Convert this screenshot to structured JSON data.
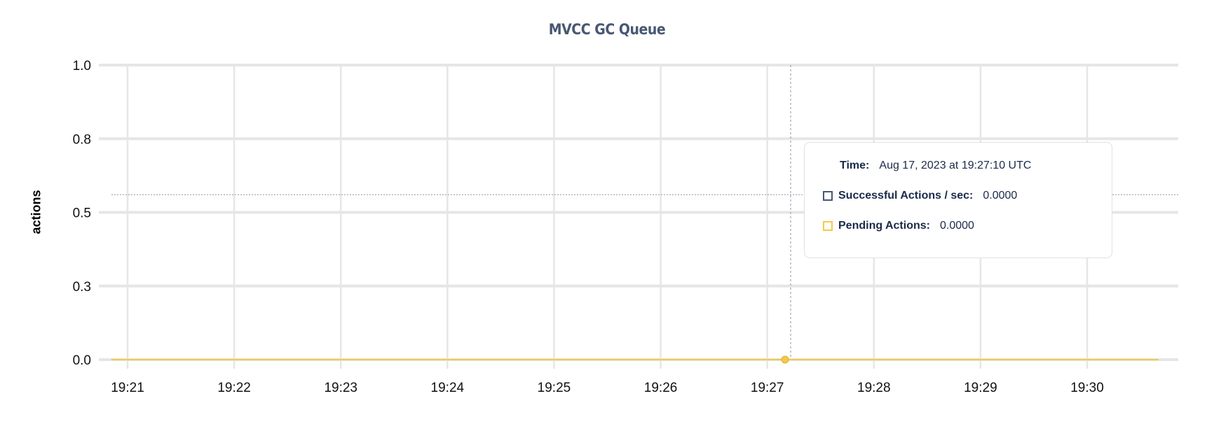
{
  "chart_data": {
    "type": "line",
    "title": "MVCC GC Queue",
    "ylabel": "actions",
    "xlabel": "",
    "ylim": [
      0,
      1
    ],
    "y_ticks": [
      {
        "value": 0,
        "label": "0.0"
      },
      {
        "value": 0.25,
        "label": "0.3"
      },
      {
        "value": 0.5,
        "label": "0.5"
      },
      {
        "value": 0.75,
        "label": "0.8"
      },
      {
        "value": 1,
        "label": "1.0"
      }
    ],
    "x_ticks": [
      "19:21",
      "19:22",
      "19:23",
      "19:24",
      "19:25",
      "19:26",
      "19:27",
      "19:28",
      "19:29",
      "19:30"
    ],
    "x_range": [
      "19:20:51",
      "19:30:40"
    ],
    "grid": true,
    "series": [
      {
        "name": "Successful Actions / sec",
        "color": "#475872",
        "points": [
          [
            "19:20:51",
            0
          ],
          [
            "19:30:40",
            0
          ]
        ]
      },
      {
        "name": "Pending Actions",
        "color": "#f2c94c",
        "points": [
          [
            "19:20:51",
            0
          ],
          [
            "19:30:40",
            0
          ]
        ]
      }
    ],
    "hover": {
      "time": "19:27:10",
      "value_level": 0.56
    }
  },
  "tooltip": {
    "time_label": "Time:",
    "time_value": "Aug 17, 2023 at 19:27:10 UTC",
    "rows": [
      {
        "label": "Successful Actions / sec:",
        "value": "0.0000",
        "color": "#475872"
      },
      {
        "label": "Pending Actions:",
        "value": "0.0000",
        "color": "#f2c94c"
      }
    ]
  }
}
